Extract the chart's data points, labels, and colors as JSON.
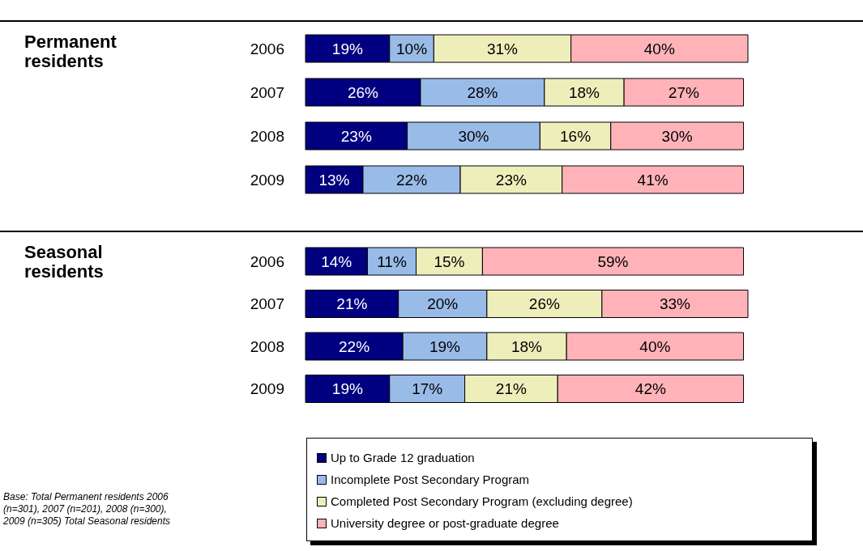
{
  "chart_data": [
    {
      "type": "bar",
      "orientation": "horizontal",
      "stacked": true,
      "ylabel": "Permanent residents",
      "categories": [
        "2006",
        "2007",
        "2008",
        "2009"
      ],
      "series": [
        {
          "color": "#000080",
          "values": [
            19,
            26,
            23,
            13
          ],
          "value_labels": [
            "19%",
            "26%",
            "23%",
            "13%"
          ]
        },
        {
          "color": "#99bbe8",
          "values": [
            10,
            28,
            30,
            22
          ],
          "value_labels": [
            "10%",
            "28%",
            "30%",
            "22%"
          ]
        },
        {
          "color": "#eeeebb",
          "values": [
            31,
            18,
            16,
            23
          ],
          "value_labels": [
            "31%",
            "18%",
            "16%",
            "23%"
          ]
        },
        {
          "color": "#ffb3b8",
          "values": [
            40,
            27,
            30,
            41
          ],
          "value_labels": [
            "40%",
            "27%",
            "30%",
            "41%"
          ]
        }
      ]
    },
    {
      "type": "bar",
      "orientation": "horizontal",
      "stacked": true,
      "ylabel": "Seasonal residents",
      "categories": [
        "2006",
        "2007",
        "2008",
        "2009"
      ],
      "legend": "bottom",
      "annotations": [
        "Base:  Total Permanent residents 2006 (n=301), 2007 (n=201), 2008 (n=300), 2009 (n=305) Total Seasonal residents"
      ],
      "series": [
        {
          "name": "Up to Grade 12 graduation",
          "color": "#000080",
          "values": [
            14,
            21,
            22,
            19
          ],
          "value_labels": [
            "14%",
            "21%",
            "22%",
            "19%"
          ]
        },
        {
          "name": "Incomplete Post Secondary Program",
          "color": "#99bbe8",
          "values": [
            11,
            20,
            19,
            17
          ],
          "value_labels": [
            "11%",
            "20%",
            "19%",
            "17%"
          ]
        },
        {
          "name": "Completed Post Secondary Program (excluding degree)",
          "color": "#eeeebb",
          "values": [
            15,
            26,
            18,
            21
          ],
          "value_labels": [
            "15%",
            "26%",
            "18%",
            "21%"
          ]
        },
        {
          "name": "University degree or post-graduate degree",
          "color": "#ffb3b8",
          "values": [
            59,
            33,
            40,
            42
          ],
          "value_labels": [
            "59%",
            "33%",
            "40%",
            "42%"
          ]
        }
      ]
    }
  ]
}
